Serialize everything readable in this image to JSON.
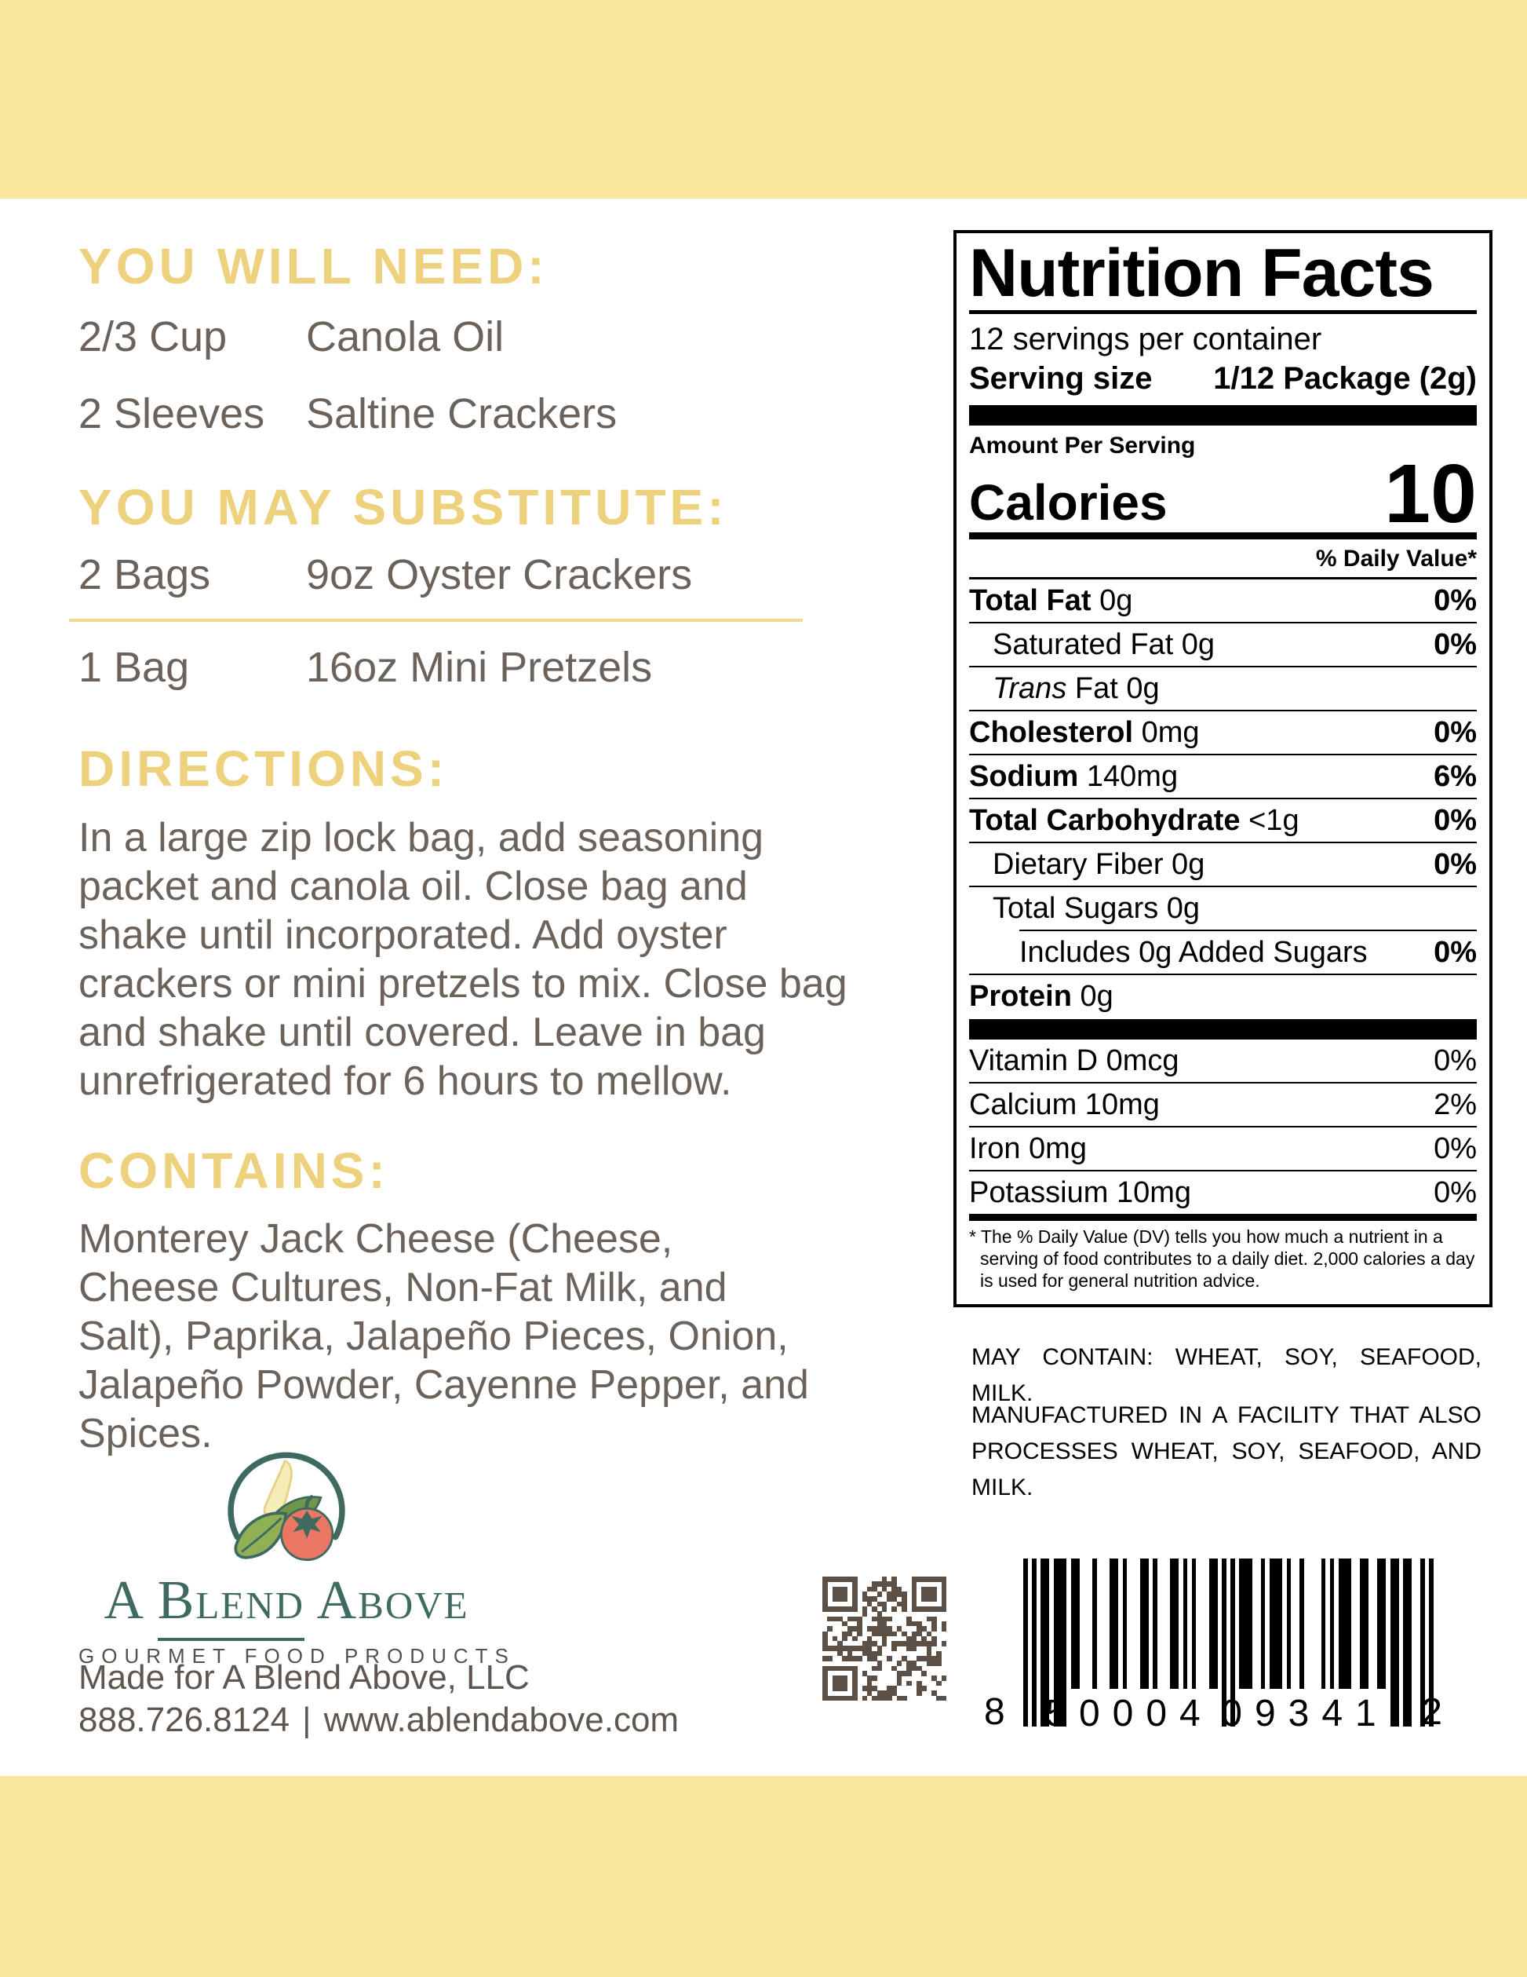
{
  "colors": {
    "band": "#f9e79e",
    "heading": "#eed17c",
    "body": "#6b635b",
    "teal": "#3f6a61",
    "tagline": "#57504a",
    "contact": "#5f574f",
    "divider": "#ecd994",
    "qr": "#5c5046",
    "tomato": "#e97763",
    "leaf": "#8fb055",
    "leaf2": "#6f9747",
    "pepper": "#f6ecb8"
  },
  "sections": {
    "you_will_need": {
      "heading": "YOU WILL NEED:",
      "items": [
        {
          "qty": "2/3 Cup",
          "item": "Canola Oil"
        },
        {
          "qty": "2 Sleeves",
          "item": "Saltine Crackers"
        }
      ]
    },
    "you_may_substitute": {
      "heading": "YOU MAY SUBSTITUTE:",
      "items": [
        {
          "qty": "2 Bags",
          "item": "9oz Oyster Crackers"
        },
        {
          "qty": "1 Bag",
          "item": "16oz Mini Pretzels"
        }
      ]
    },
    "directions": {
      "heading": "DIRECTIONS:",
      "text": "In a large zip lock bag, add seasoning packet and canola oil. Close bag and shake until incorporated. Add oyster crackers or mini pretzels to mix. Close bag and shake until covered. Leave in bag unrefrigerated for 6 hours to mellow."
    },
    "contains": {
      "heading": "CONTAINS:",
      "text": "Monterey Jack Cheese (Cheese, Cheese Cultures, Non-Fat Milk, and Salt), Paprika, Jalapeño Pieces, Onion, Jalapeño Powder, Cayenne Pepper, and Spices."
    }
  },
  "brand": {
    "word_a": "A",
    "word_blend": "Blend",
    "word_above": "Above",
    "tagline": "GOURMET FOOD PRODUCTS",
    "made_for": "Made for A Blend Above, LLC",
    "phone": "888.726.8124",
    "separator": "|",
    "website": "www.ablendabove.com"
  },
  "nutrition": {
    "title": "Nutrition Facts",
    "servings_per_container": "12 servings per container",
    "serving_size_label": "Serving size",
    "serving_size_value": "1/12 Package (2g)",
    "amount_per_serving": "Amount Per Serving",
    "calories_label": "Calories",
    "calories_value": "10",
    "daily_value_header": "% Daily Value*",
    "rows": [
      {
        "b": "Total Fat",
        "t": " 0g",
        "dv": "0%",
        "ind": 0
      },
      {
        "t": "Saturated Fat 0g",
        "dv": "0%",
        "ind": 1
      },
      {
        "i": "Trans",
        "t": " Fat 0g",
        "dv": "",
        "ind": 1
      },
      {
        "b": "Cholesterol",
        "t": " 0mg",
        "dv": "0%",
        "ind": 0
      },
      {
        "b": "Sodium",
        "t": " 140mg",
        "dv": "6%",
        "ind": 0
      },
      {
        "b": "Total Carbohydrate",
        "t": " <1g",
        "dv": "0%",
        "ind": 0
      },
      {
        "t": "Dietary Fiber 0g",
        "dv": "0%",
        "ind": 1
      },
      {
        "t": "Total Sugars 0g",
        "dv": "",
        "ind": 1,
        "nb": true
      },
      {
        "t": "Includes 0g Added Sugars",
        "dv": "0%",
        "ind": 2,
        "tr": true
      },
      {
        "b": "Protein",
        "t": " 0g",
        "dv": "",
        "ind": 0,
        "nb": true
      }
    ],
    "vitamins": [
      {
        "t": "Vitamin D 0mcg",
        "dv": "0%"
      },
      {
        "t": "Calcium 10mg",
        "dv": "2%"
      },
      {
        "t": "Iron 0mg",
        "dv": "0%"
      },
      {
        "t": "Potassium 10mg",
        "dv": "0%"
      }
    ],
    "footnote": "* The % Daily Value (DV) tells you how much a nutrient in a serving of food contributes to a daily diet. 2,000 calories a day is used for general nutrition advice."
  },
  "allergens": {
    "may_contain": "MAY CONTAIN: WHEAT, SOY, SEAFOOD, MILK.",
    "facility": "MANUFACTURED IN A FACILITY THAT ALSO PROCESSES WHEAT, SOY, SEAFOOD, AND MILK."
  },
  "barcode": {
    "digits": "850004093412",
    "groups": [
      "8",
      "50004",
      "09341",
      "2"
    ]
  }
}
